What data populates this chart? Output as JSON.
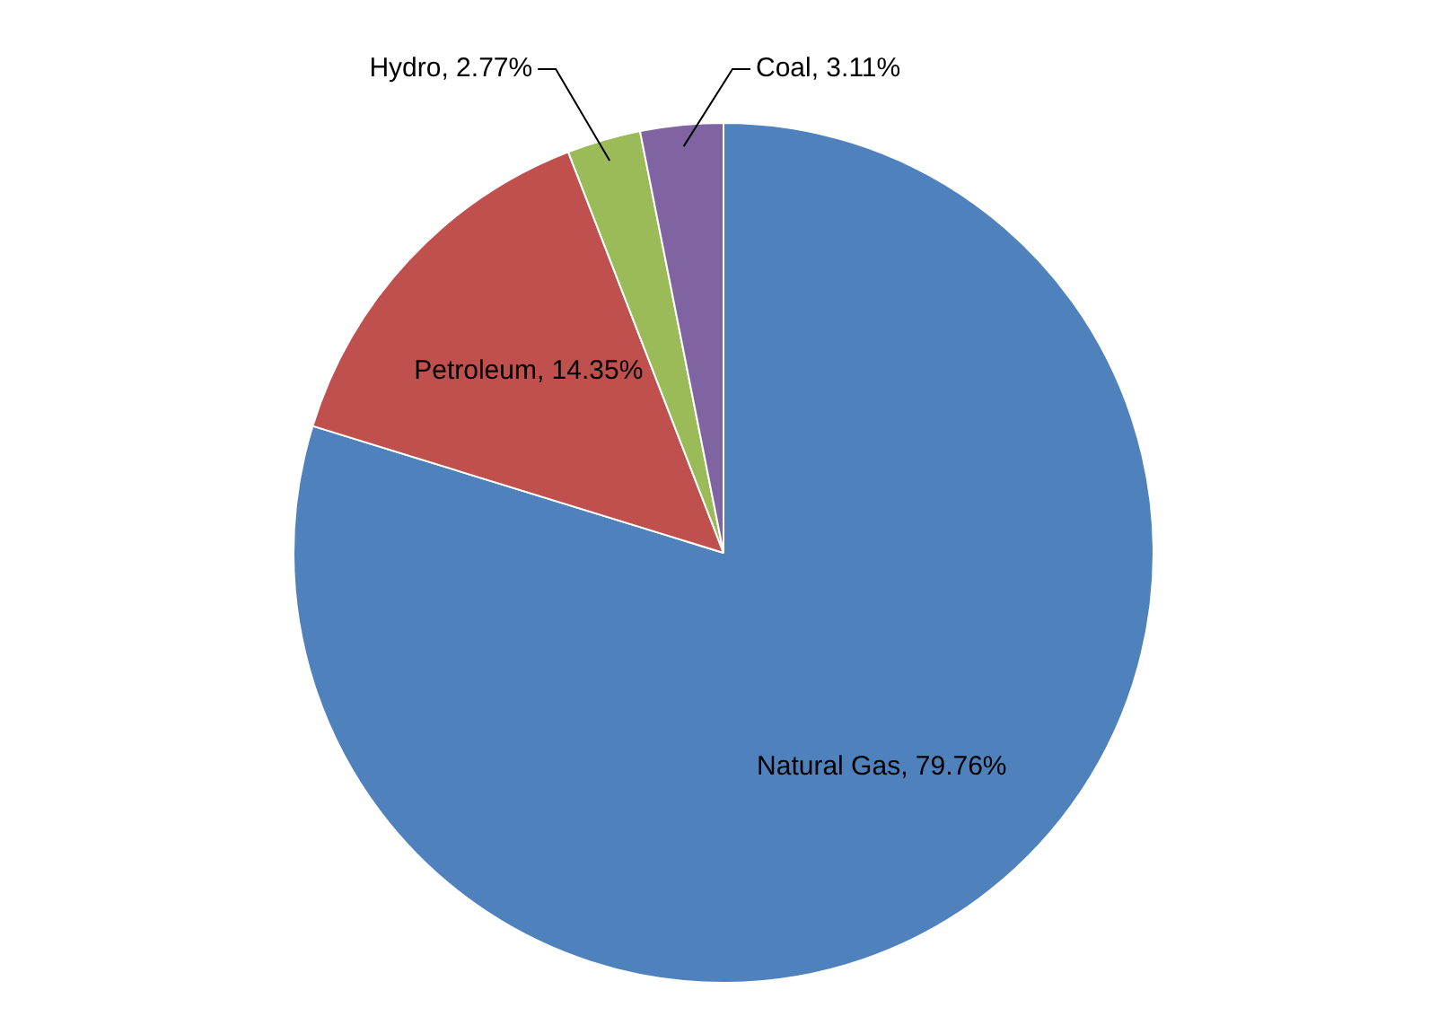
{
  "chart_data": {
    "type": "pie",
    "categories": [
      "Natural Gas",
      "Petroleum",
      "Hydro",
      "Coal"
    ],
    "values": [
      79.76,
      14.35,
      2.77,
      3.11
    ],
    "colors": [
      "#4f81bd",
      "#c0504d",
      "#9bbb59",
      "#8064a2"
    ],
    "value_labels": [
      ", 79.76%",
      ", 14.35%",
      ", 2.77%",
      ", 3.11%"
    ],
    "legend": false
  }
}
